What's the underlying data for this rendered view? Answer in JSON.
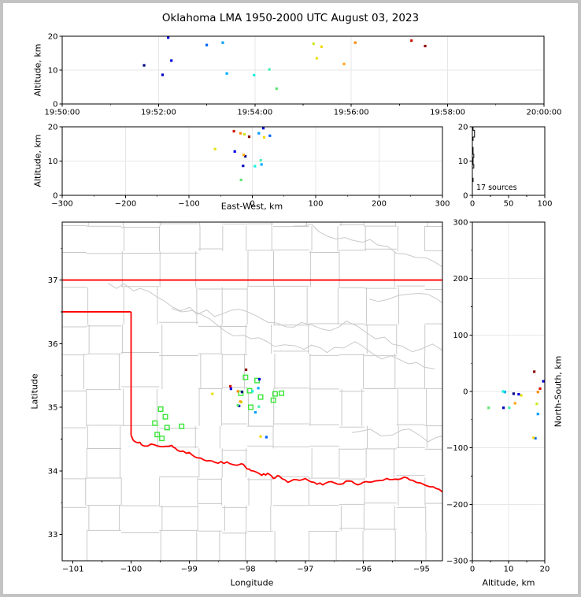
{
  "title": "Oklahoma LMA 1950-2000 UTC August 03, 2023",
  "colors": {
    "state_border": "#FF0000",
    "county_lines": "#C9C9C9",
    "grid": "#E7E7E7",
    "station_marker": "#39E639",
    "histogram_line": "#000000",
    "frame": "#C3C3C3"
  },
  "chart_data": [
    {
      "id": "time_height",
      "type": "scatter",
      "ylabel": "Altitude, km",
      "xlim_seconds_after_1950utc": [
        0,
        600
      ],
      "ylim": [
        0,
        20
      ],
      "x_ticks": [
        {
          "v": 0,
          "label": "19:50:00"
        },
        {
          "v": 120,
          "label": "19:52:00"
        },
        {
          "v": 240,
          "label": "19:54:00"
        },
        {
          "v": 360,
          "label": "19:56:00"
        },
        {
          "v": 480,
          "label": "19:58:00"
        },
        {
          "v": 600,
          "label": "20:00:00"
        }
      ],
      "y_ticks": [
        {
          "v": 0,
          "label": "0"
        },
        {
          "v": 10,
          "label": "10"
        },
        {
          "v": 20,
          "label": "20"
        }
      ],
      "x_field": "t",
      "y_field": "alt"
    },
    {
      "id": "ew_height",
      "type": "scatter",
      "xlabel": "East-West, km",
      "ylabel": "Altitude, km",
      "xlim": [
        -300,
        300
      ],
      "ylim": [
        0,
        20
      ],
      "x_ticks": [
        {
          "v": -300,
          "label": "−300"
        },
        {
          "v": -200,
          "label": "−200"
        },
        {
          "v": -100,
          "label": "−100"
        },
        {
          "v": 0,
          "label": "0"
        },
        {
          "v": 100,
          "label": "100"
        },
        {
          "v": 200,
          "label": "200"
        },
        {
          "v": 300,
          "label": "300"
        }
      ],
      "y_ticks": [
        {
          "v": 0,
          "label": "0"
        },
        {
          "v": 10,
          "label": "10"
        },
        {
          "v": 20,
          "label": "20"
        }
      ],
      "x_field": "ew",
      "y_field": "alt"
    },
    {
      "id": "altitude_histogram",
      "type": "line",
      "annotation": "17 sources",
      "xlim": [
        0,
        100
      ],
      "ylim": [
        0,
        20
      ],
      "x_ticks": [
        {
          "v": 0,
          "label": "0"
        },
        {
          "v": 50,
          "label": "50"
        },
        {
          "v": 100,
          "label": "100"
        }
      ],
      "y_ticks": [
        {
          "v": 0,
          "label": "0"
        },
        {
          "v": 10,
          "label": "10"
        },
        {
          "v": 20,
          "label": "20"
        }
      ],
      "bins_alt_km": [
        4,
        8,
        9,
        10,
        11,
        12,
        13,
        16,
        17,
        18,
        19
      ],
      "bins_count": [
        1,
        2,
        1,
        1,
        2,
        1,
        1,
        1,
        3,
        3,
        1
      ]
    },
    {
      "id": "plan_view_map",
      "type": "scatter",
      "xlabel": "Longitude",
      "ylabel": "Latitude",
      "xlim": [
        -101.186,
        -94.639
      ],
      "ylim": [
        32.586,
        37.911
      ],
      "x_ticks": [
        {
          "v": -101,
          "label": "−101"
        },
        {
          "v": -100,
          "label": "−100"
        },
        {
          "v": -99,
          "label": "−99"
        },
        {
          "v": -98,
          "label": "−98"
        },
        {
          "v": -97,
          "label": "−97"
        },
        {
          "v": -96,
          "label": "−96"
        },
        {
          "v": -95,
          "label": "−95"
        }
      ],
      "y_ticks": [
        {
          "v": 33,
          "label": "33"
        },
        {
          "v": 34,
          "label": "34"
        },
        {
          "v": 35,
          "label": "35"
        },
        {
          "v": 36,
          "label": "36"
        },
        {
          "v": 37,
          "label": "37"
        }
      ],
      "x_field": "lon",
      "y_field": "lat"
    },
    {
      "id": "ns_height",
      "type": "scatter",
      "xlabel": "Altitude, km",
      "ylabel": "North-South, km",
      "xlim": [
        0,
        20
      ],
      "ylim": [
        -300,
        300
      ],
      "x_ticks": [
        {
          "v": 0,
          "label": "0"
        },
        {
          "v": 10,
          "label": "10"
        },
        {
          "v": 20,
          "label": "20"
        }
      ],
      "y_ticks": [
        {
          "v": 300,
          "label": "300"
        },
        {
          "v": 200,
          "label": "200"
        },
        {
          "v": 100,
          "label": "100"
        },
        {
          "v": 0,
          "label": "0"
        },
        {
          "v": -100,
          "label": "−100"
        },
        {
          "v": -200,
          "label": "−200"
        },
        {
          "v": -300,
          "label": "−300"
        }
      ],
      "x_field": "alt",
      "y_field": "ns"
    }
  ],
  "sources": [
    {
      "t": 102,
      "alt": 11.4,
      "ew": -11.0,
      "ns": -4,
      "lon": -98.09,
      "lat": 35.24,
      "color": "#000082"
    },
    {
      "t": 125,
      "alt": 8.6,
      "ew": -14.5,
      "ns": -29,
      "lon": -98.14,
      "lat": 35.02,
      "color": "#0000C3"
    },
    {
      "t": 132,
      "alt": 19.6,
      "ew": 17.4,
      "ns": 18,
      "lon": -97.79,
      "lat": 35.44,
      "color": "#0000D7"
    },
    {
      "t": 136,
      "alt": 12.8,
      "ew": -27.7,
      "ns": -5,
      "lon": -98.28,
      "lat": 35.29,
      "color": "#0000E8"
    },
    {
      "t": 180,
      "alt": 17.4,
      "ew": 27.7,
      "ns": -83,
      "lon": -97.67,
      "lat": 34.53,
      "color": "#0064FF"
    },
    {
      "t": 200,
      "alt": 18.1,
      "ew": 10.3,
      "ns": -40,
      "lon": -97.86,
      "lat": 34.92,
      "color": "#009EFF"
    },
    {
      "t": 205,
      "alt": 9.0,
      "ew": 14.5,
      "ns": -1,
      "lon": -97.81,
      "lat": 35.3,
      "color": "#00ADFF"
    },
    {
      "t": 239,
      "alt": 8.5,
      "ew": 4.1,
      "ns": 0,
      "lon": -97.91,
      "lat": 35.25,
      "color": "#14F0E0"
    },
    {
      "t": 258,
      "alt": 10.2,
      "ew": 13.3,
      "ns": -29,
      "lon": -97.8,
      "lat": 35.01,
      "color": "#48EFB0"
    },
    {
      "t": 267,
      "alt": 4.5,
      "ew": -17.8,
      "ns": -29,
      "lon": -98.16,
      "lat": 35.03,
      "color": "#5FE573"
    },
    {
      "t": 313,
      "alt": 17.8,
      "ew": -12.4,
      "ns": -22,
      "lon": -98.1,
      "lat": 35.08,
      "color": "#CFE81F"
    },
    {
      "t": 317,
      "alt": 13.5,
      "ew": -58.8,
      "ns": -7,
      "lon": -98.6,
      "lat": 35.21,
      "color": "#E8E312"
    },
    {
      "t": 323,
      "alt": 16.9,
      "ew": 18.6,
      "ns": -82,
      "lon": -97.77,
      "lat": 34.54,
      "color": "#F2DC0C"
    },
    {
      "t": 351,
      "alt": 11.8,
      "ew": -13.7,
      "ns": -21,
      "lon": -98.12,
      "lat": 35.09,
      "color": "#FFA717"
    },
    {
      "t": 365,
      "alt": 18.1,
      "ew": -18.6,
      "ns": -1,
      "lon": -98.16,
      "lat": 35.25,
      "color": "#FF8A0D"
    },
    {
      "t": 435,
      "alt": 18.7,
      "ew": -29.0,
      "ns": 5,
      "lon": -98.29,
      "lat": 35.33,
      "color": "#D11507"
    },
    {
      "t": 452,
      "alt": 17.1,
      "ew": -5.0,
      "ns": 35,
      "lon": -98.02,
      "lat": 35.59,
      "color": "#8E0C04"
    }
  ],
  "stations_lon_lat": [
    [
      -99.49,
      34.97
    ],
    [
      -99.41,
      34.85
    ],
    [
      -99.59,
      34.75
    ],
    [
      -99.38,
      34.68
    ],
    [
      -99.13,
      34.7
    ],
    [
      -99.55,
      34.57
    ],
    [
      -99.47,
      34.51
    ],
    [
      -98.03,
      35.47
    ],
    [
      -97.83,
      35.42
    ],
    [
      -97.96,
      35.26
    ],
    [
      -98.11,
      35.22
    ],
    [
      -97.77,
      35.16
    ],
    [
      -97.52,
      35.21
    ],
    [
      -97.41,
      35.22
    ],
    [
      -97.55,
      35.11
    ],
    [
      -97.94,
      35.0
    ]
  ],
  "oklahoma_border": {
    "north_lat": 37.0,
    "panhandle_south_lat": 36.5,
    "west_lon": -100.0,
    "red_river_lon_lat": [
      [
        -100.0,
        34.56
      ],
      [
        -99.95,
        34.47
      ],
      [
        -99.85,
        34.45
      ],
      [
        -99.77,
        34.39
      ],
      [
        -99.6,
        34.41
      ],
      [
        -99.45,
        34.38
      ],
      [
        -99.3,
        34.4
      ],
      [
        -99.21,
        34.33
      ],
      [
        -99.1,
        34.31
      ],
      [
        -98.95,
        34.25
      ],
      [
        -98.8,
        34.2
      ],
      [
        -98.65,
        34.16
      ],
      [
        -98.5,
        34.12
      ],
      [
        -98.35,
        34.14
      ],
      [
        -98.2,
        34.09
      ],
      [
        -98.1,
        34.11
      ],
      [
        -98.0,
        34.03
      ],
      [
        -97.9,
        34.0
      ],
      [
        -97.75,
        33.93
      ],
      [
        -97.65,
        33.96
      ],
      [
        -97.55,
        33.88
      ],
      [
        -97.45,
        33.92
      ],
      [
        -97.3,
        33.82
      ],
      [
        -97.15,
        33.86
      ],
      [
        -97.0,
        33.88
      ],
      [
        -96.85,
        33.82
      ],
      [
        -96.7,
        33.78
      ],
      [
        -96.55,
        33.83
      ],
      [
        -96.4,
        33.79
      ],
      [
        -96.25,
        33.84
      ],
      [
        -96.1,
        33.78
      ],
      [
        -95.95,
        33.83
      ],
      [
        -95.8,
        33.84
      ],
      [
        -95.6,
        33.88
      ],
      [
        -95.45,
        33.87
      ],
      [
        -95.3,
        33.9
      ],
      [
        -95.15,
        33.85
      ],
      [
        -94.95,
        33.78
      ],
      [
        -94.8,
        33.75
      ],
      [
        -94.64,
        33.67
      ]
    ]
  }
}
